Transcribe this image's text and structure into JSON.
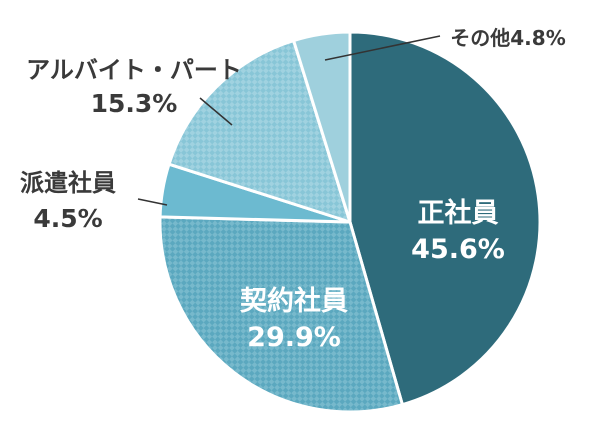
{
  "colors": {
    "seg0": "#2e6b7b",
    "seg1": "#5ba8bf",
    "seg2": "#6cbad0",
    "seg3": "#88c6d7",
    "seg4": "#9fd0dd",
    "stroke": "#ffffff",
    "leader": "#333333",
    "outside_text": "#3a3a3a",
    "inside_text": "#ffffff"
  },
  "chart_data": {
    "type": "pie",
    "start_angle_deg": 0,
    "direction": "clockwise",
    "title": "",
    "legend": "none",
    "slices": [
      {
        "label": "正社員",
        "value": 45.6,
        "value_text": "45.6%",
        "pattern": "solid",
        "label_position": "inside"
      },
      {
        "label": "契約社員",
        "value": 29.9,
        "value_text": "29.9%",
        "pattern": "checker",
        "label_position": "inside"
      },
      {
        "label": "派遣社員",
        "value": 4.5,
        "value_text": "4.5%",
        "pattern": "solid",
        "label_position": "outside-left"
      },
      {
        "label": "アルバイト・パート",
        "value": 15.3,
        "value_text": "15.3%",
        "pattern": "checker",
        "label_position": "outside-top-left"
      },
      {
        "label": "その他",
        "value": 4.8,
        "value_text": "4.8%",
        "pattern": "solid",
        "label_position": "outside-top-right"
      }
    ]
  }
}
